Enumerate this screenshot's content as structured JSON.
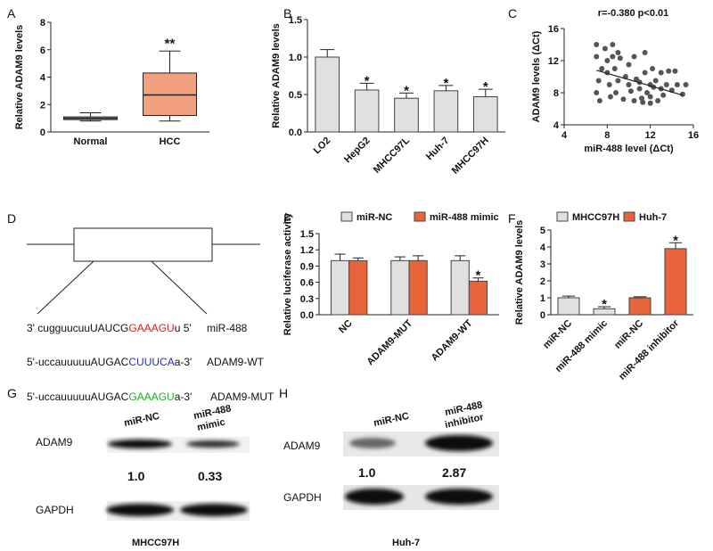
{
  "chart_data": [
    {
      "type": "box",
      "label": "A",
      "ylabel": "Relative ADAM9 levels",
      "categories": [
        "Normal",
        "HCC"
      ],
      "colors": [
        "#e6e6e6",
        "#f2a07e"
      ],
      "boxes": [
        {
          "min": 0.8,
          "q1": 0.9,
          "median": 1.0,
          "q3": 1.1,
          "max": 1.4
        },
        {
          "min": 0.8,
          "q1": 1.2,
          "median": 2.7,
          "q3": 4.3,
          "max": 5.9
        }
      ],
      "annotations": [
        null,
        "**"
      ],
      "ylim": [
        0,
        8
      ],
      "yticks": [
        0,
        2,
        4,
        6,
        8
      ]
    },
    {
      "type": "bar",
      "label": "B",
      "ylabel": "Relative ADAM9 levels",
      "categories": [
        "LO2",
        "HepG2",
        "MHCC97L",
        "Huh-7",
        "MHCC97H"
      ],
      "color": "#e0e0e0",
      "values": [
        1.0,
        0.56,
        0.45,
        0.55,
        0.47
      ],
      "errors": [
        0.1,
        0.09,
        0.07,
        0.07,
        0.1
      ],
      "annotations": [
        null,
        "*",
        "*",
        "*",
        "*"
      ],
      "ylim": [
        0,
        1.5
      ],
      "yticks": [
        {
          "value": 0,
          "label": "0.0"
        },
        0.5,
        {
          "value": 1,
          "label": "1.0"
        },
        1.5
      ]
    },
    {
      "type": "scatter",
      "label": "C",
      "title": "r=-0.380 p<0.01",
      "xlabel": "miR-488 level (ΔCt)",
      "ylabel": "ADAM9 levels (ΔCt)",
      "color": "#555555",
      "x": [
        7,
        7,
        7.2,
        7,
        7.3,
        7.5,
        7.8,
        8,
        8,
        8.2,
        8.3,
        8.5,
        8.5,
        8.7,
        8.8,
        9,
        9,
        9.2,
        9.5,
        9.7,
        10,
        10,
        10.2,
        10.5,
        10.5,
        10.7,
        11,
        11,
        11.2,
        11.3,
        11.5,
        11.5,
        11.7,
        12,
        12,
        12,
        12.2,
        12.3,
        12.5,
        12.7,
        13,
        13,
        13.2,
        13.5,
        13.7,
        14,
        14.3,
        14.5,
        15,
        15.3
      ],
      "y": [
        14,
        12.5,
        9.5,
        8,
        7,
        11,
        13.5,
        12,
        10.5,
        9,
        7.5,
        14,
        12.5,
        11,
        8,
        13,
        9.5,
        12.3,
        7.2,
        10,
        11.5,
        9,
        8.2,
        7,
        12.5,
        9.7,
        8.5,
        9.3,
        7.3,
        6.8,
        13,
        10.5,
        8,
        9,
        7.5,
        6.7,
        11,
        8.7,
        9.5,
        7,
        8.5,
        10.5,
        7.7,
        9,
        10.7,
        8.3,
        10.7,
        9,
        7.8,
        9
      ],
      "trendline": {
        "x": [
          7,
          15
        ],
        "y": [
          10.8,
          7.7
        ]
      },
      "xlim": [
        4,
        16
      ],
      "ylim": [
        4,
        16
      ],
      "xticks": [
        4,
        8,
        12,
        16
      ],
      "yticks": [
        4,
        8,
        12,
        16
      ]
    },
    {
      "type": "bar",
      "label": "E",
      "ylabel": "Relative luciferase activity",
      "categories": [
        "NC",
        "ADAM9-MUT",
        "ADAM9-WT"
      ],
      "series": [
        {
          "name": "miR-NC",
          "color": "#e0e0e0",
          "values": [
            1.0,
            1.0,
            1.0
          ],
          "errors": [
            0.12,
            0.07,
            0.09
          ]
        },
        {
          "name": "miR-488 mimic",
          "color": "#e8643a",
          "values": [
            1.0,
            1.0,
            0.62
          ],
          "errors": [
            0.05,
            0.09,
            0.06
          ],
          "annotations": [
            null,
            null,
            "*"
          ]
        }
      ],
      "ylim": [
        0,
        1.5
      ],
      "yticks": [
        {
          "value": 0,
          "label": "0.0"
        },
        0.3,
        0.6,
        0.9,
        1.2,
        1.5
      ]
    },
    {
      "type": "bar",
      "label": "F",
      "ylabel": "Relative ADAM9 levels",
      "categories": [
        "miR-NC",
        "miR-488 mimic",
        "miR-NC",
        "miR-488 inhibitor"
      ],
      "series": [
        {
          "name": "MHCC97H",
          "color": "#e0e0e0",
          "values": [
            1.0,
            0.35,
            null,
            null
          ],
          "errors": [
            0.1,
            0.12,
            null,
            null
          ],
          "annotations": [
            null,
            "*",
            null,
            null
          ]
        },
        {
          "name": "Huh-7",
          "color": "#e8643a",
          "values": [
            null,
            null,
            1.0,
            3.9
          ],
          "errors": [
            null,
            null,
            0.06,
            0.35
          ],
          "annotations": [
            null,
            null,
            null,
            "*"
          ]
        }
      ],
      "ylim": [
        0,
        5
      ],
      "yticks": [
        0,
        1,
        2,
        3,
        4,
        5
      ]
    }
  ],
  "panel_d": {
    "label": "D",
    "rows": [
      [
        "3' cugguucuuUAUCG",
        "GAAAGU",
        "u 5'",
        "miR-488"
      ],
      [
        "5'-uccauuuuuAUGAC",
        "CUUUCA",
        "a-3'",
        "ADAM9-WT"
      ],
      [
        "5'-uccauuuuuAUGAC",
        "GAAAGU",
        "a-3'",
        "ADAM9-MUT"
      ]
    ]
  },
  "panel_g": {
    "label": "G",
    "lanes": [
      "miR-NC",
      "miR-488",
      "mimic"
    ],
    "bands": [
      "ADAM9",
      "GAPDH"
    ],
    "ratios": [
      "1.0",
      "0.33"
    ],
    "cell_line": "MHCC97H"
  },
  "panel_h": {
    "label": "H",
    "lanes": [
      "miR-NC",
      "miR-488",
      "inhibitor"
    ],
    "bands": [
      "ADAM9",
      "GAPDH"
    ],
    "ratios": [
      "1.0",
      "2.87"
    ],
    "cell_line": "Huh-7"
  }
}
